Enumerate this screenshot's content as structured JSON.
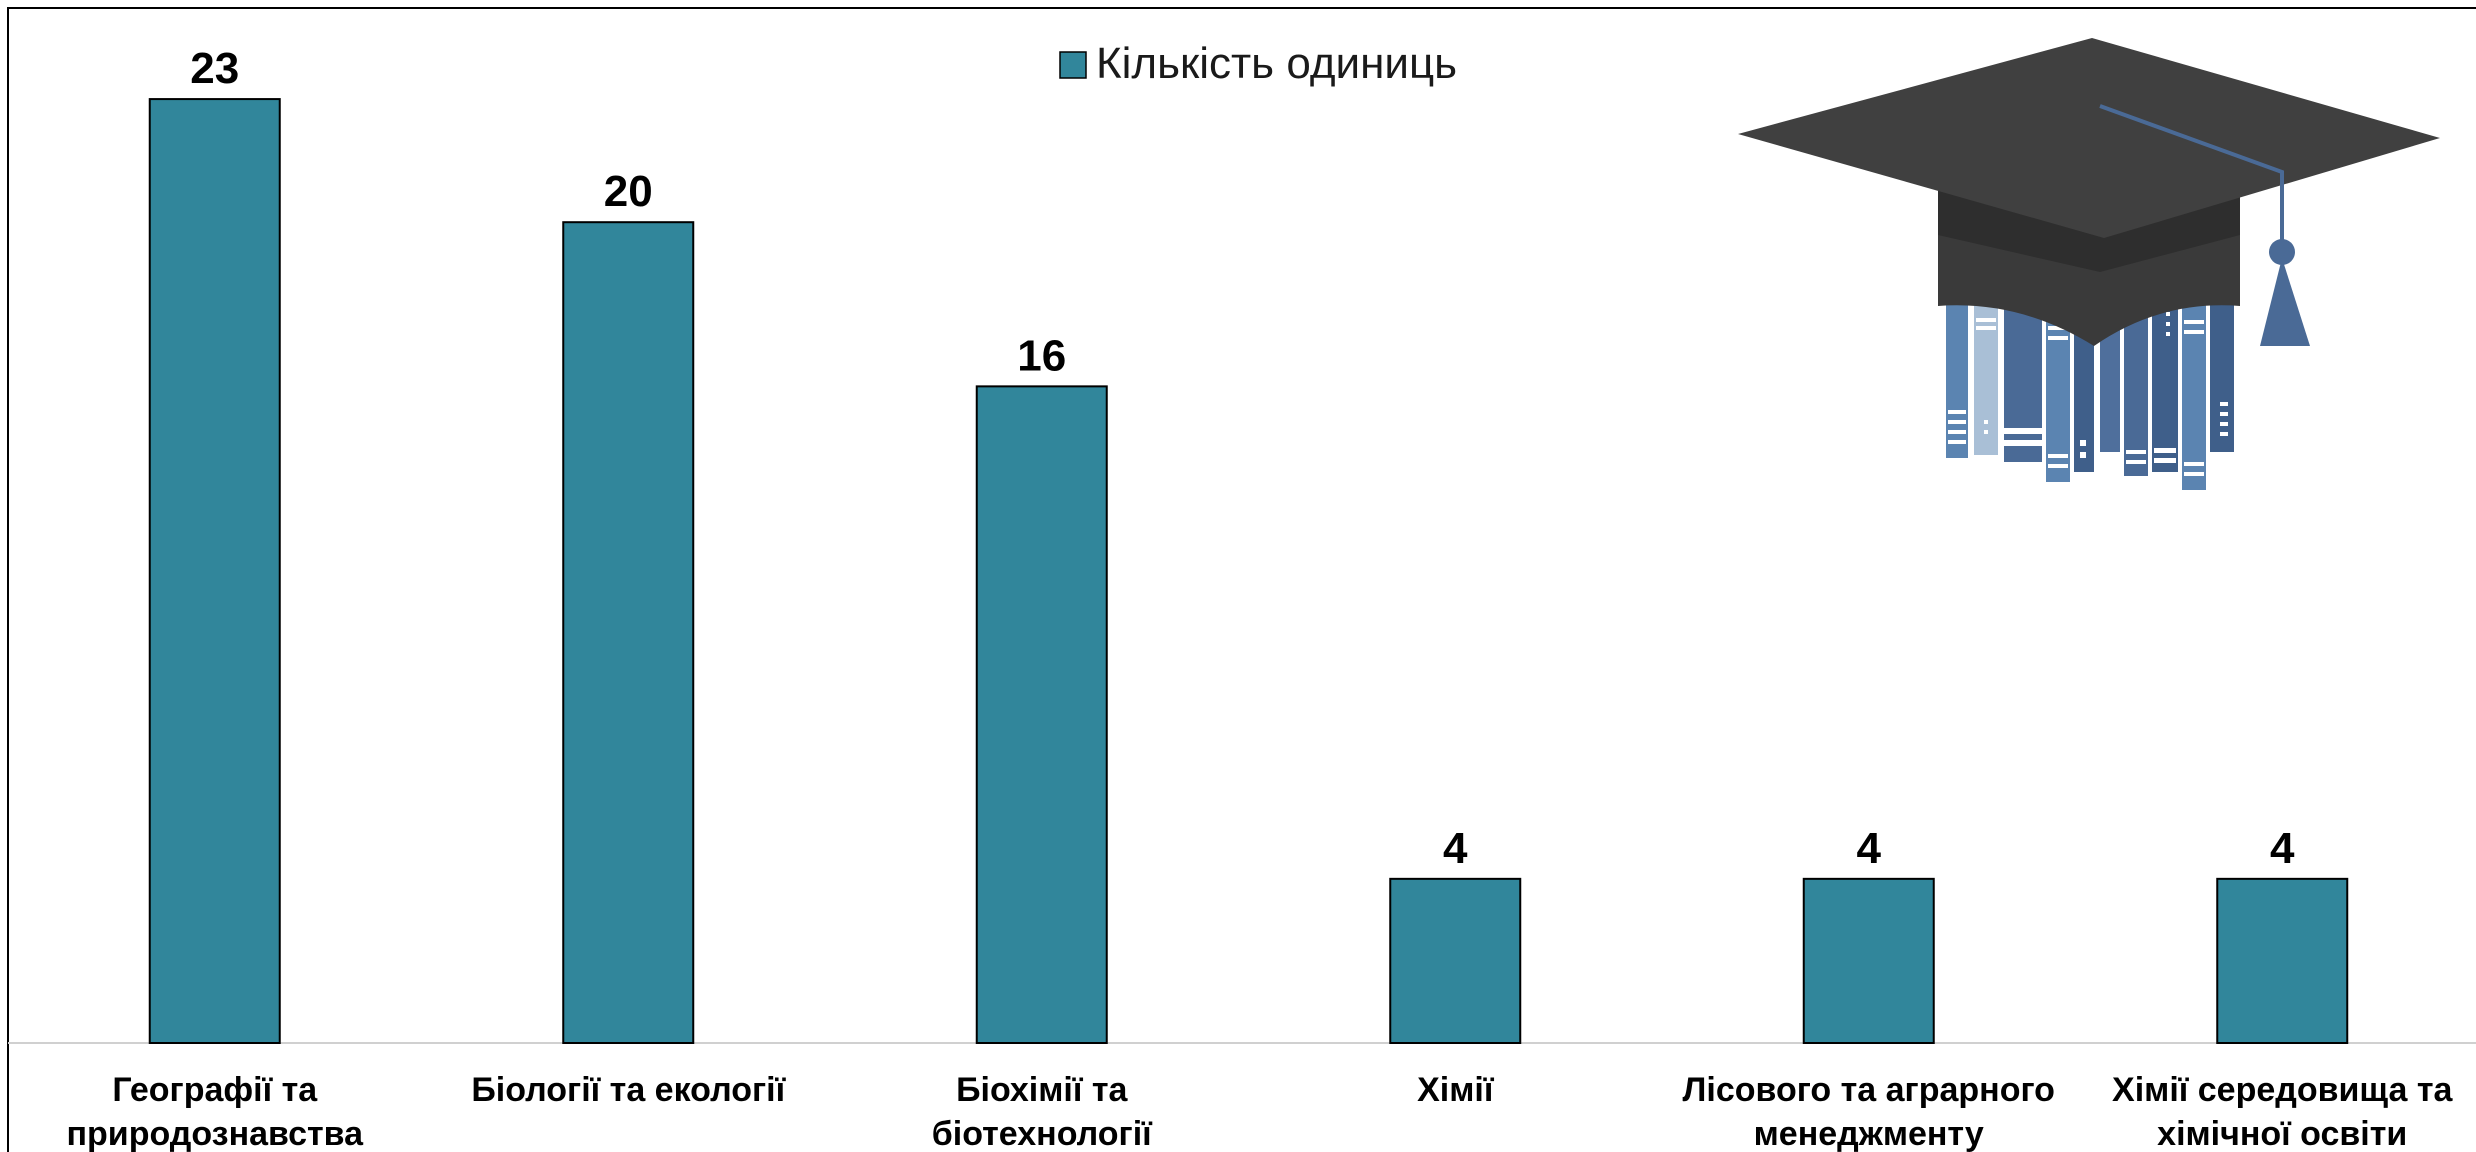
{
  "chart_data": {
    "type": "bar",
    "categories": [
      [
        "Географії та",
        "природознавства"
      ],
      [
        "Біології та екології"
      ],
      [
        "Біохімії та",
        "біотехнології"
      ],
      [
        "Хімії"
      ],
      [
        "Лісового та аграрного",
        "менеджменту"
      ],
      [
        "Хімії середовища та",
        "хімічної освіти"
      ]
    ],
    "series": [
      {
        "name": "Кількість одиниць",
        "values": [
          23,
          20,
          16,
          4,
          4,
          4
        ]
      }
    ],
    "data_labels": [
      "23",
      "20",
      "16",
      "4",
      "4",
      "4"
    ],
    "ylim": [
      0,
      25
    ],
    "grid": false,
    "legend_position": "top-center",
    "bar_color": "#31869b"
  },
  "decoration": {
    "icon": "graduation-cap-books-icon",
    "cap_color": "#404040",
    "book_color": "#4a6a96"
  }
}
